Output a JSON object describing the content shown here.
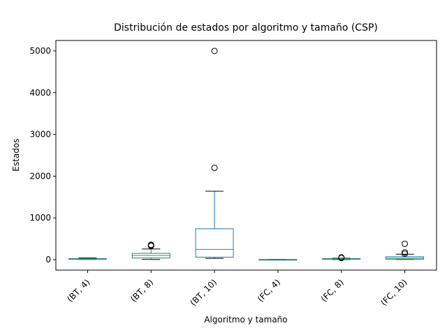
{
  "chart_data": {
    "type": "box",
    "title": "Distribución de estados por algoritmo y tamaño (CSP)",
    "xlabel": "Algoritmo y tamaño",
    "ylabel": "Estados",
    "ylim": [
      -250,
      5250
    ],
    "yticks": [
      0,
      1000,
      2000,
      3000,
      4000,
      5000
    ],
    "grid": false,
    "colors": {
      "box": "#1f77b4",
      "median": "#2ca02c",
      "whisker": "#000000",
      "flier": "#000000"
    },
    "categories": [
      "(BT, 4)",
      "(BT, 8)",
      "(BT, 10)",
      "(FC, 4)",
      "(FC, 8)",
      "(FC, 10)"
    ],
    "boxes": [
      {
        "whisker_low": 5,
        "q1": 8,
        "median": 15,
        "q3": 25,
        "whisker_high": 40,
        "fliers": []
      },
      {
        "whisker_low": 5,
        "q1": 40,
        "median": 100,
        "q3": 150,
        "whisker_high": 255,
        "fliers": [
          330,
          340,
          355
        ]
      },
      {
        "whisker_low": 30,
        "q1": 60,
        "median": 245,
        "q3": 740,
        "whisker_high": 1640,
        "fliers": [
          2200,
          5000
        ]
      },
      {
        "whisker_low": 1,
        "q1": 2,
        "median": 3,
        "q3": 5,
        "whisker_high": 8,
        "fliers": []
      },
      {
        "whisker_low": 3,
        "q1": 8,
        "median": 15,
        "q3": 25,
        "whisker_high": 35,
        "fliers": [
          40,
          55
        ]
      },
      {
        "whisker_low": 5,
        "q1": 12,
        "median": 35,
        "q3": 70,
        "whisker_high": 130,
        "fliers": [
          140,
          175,
          380
        ]
      }
    ]
  }
}
